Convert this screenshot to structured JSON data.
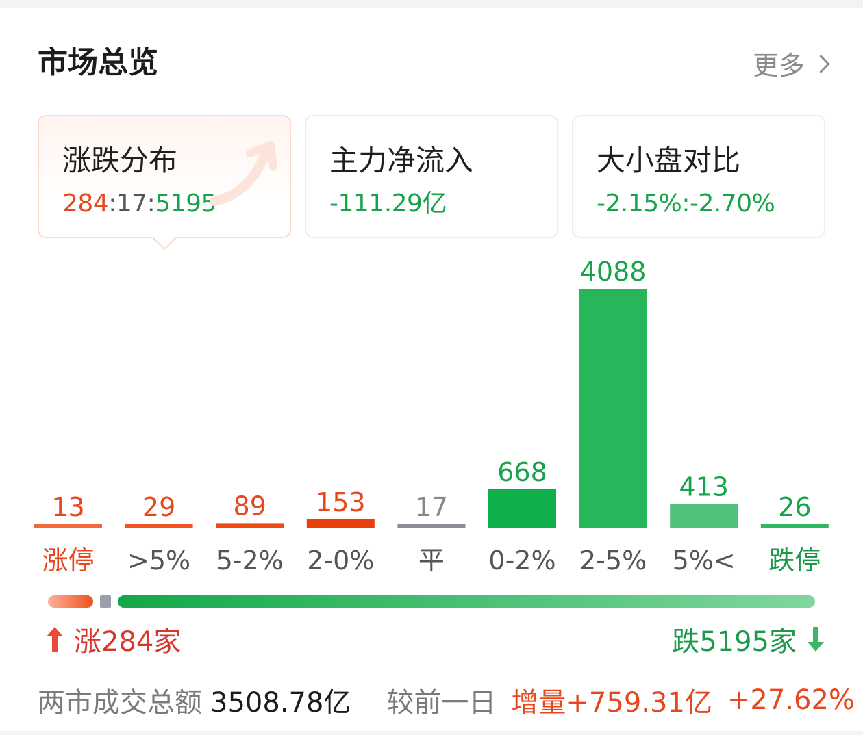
{
  "header": {
    "title": "市场总览",
    "more_label": "更多"
  },
  "tabs": [
    {
      "label": "涨跌分布",
      "value_up": "284",
      "value_sep1": ":",
      "value_flat": "17",
      "value_sep2": ":",
      "value_down": "5195",
      "active": true
    },
    {
      "label": "主力净流入",
      "value": "-111.29亿"
    },
    {
      "label": "大小盘对比",
      "value": "-2.15%:-2.70%"
    }
  ],
  "chart_data": {
    "type": "bar",
    "categories": [
      "涨停",
      ">5%",
      "5-2%",
      "2-0%",
      "平",
      "0-2%",
      "2-5%",
      "5%<",
      "跌停"
    ],
    "values": [
      13,
      29,
      89,
      153,
      17,
      668,
      4088,
      413,
      26
    ],
    "value_labels": [
      "13",
      "29",
      "89",
      "153",
      "17",
      "668",
      "4088",
      "413",
      "26"
    ],
    "colors": [
      "#f26a3c",
      "#f25522",
      "#ee4a12",
      "#e8400a",
      "#8c8c96",
      "#0faf4c",
      "#27b75a",
      "#4ec27a",
      "#2fb860"
    ],
    "label_colors": [
      "#e8461c",
      "#e8461c",
      "#e8461c",
      "#e8461c",
      "#888888",
      "#17a34a",
      "#17a34a",
      "#17a34a",
      "#17a34a"
    ],
    "category_colors": [
      "#e8461c",
      "#555555",
      "#555555",
      "#555555",
      "#555555",
      "#555555",
      "#555555",
      "#555555",
      "#1a9a4a"
    ],
    "ylim": [
      0,
      4088
    ]
  },
  "ratio_bar": {
    "up": 284,
    "flat": 17,
    "down": 5195
  },
  "summary": {
    "up_text": "涨284家",
    "down_text": "跌5195家"
  },
  "footer": {
    "label": "两市成交总额",
    "total": "3508.78亿",
    "compare_label": "较前一日",
    "change": "增量+759.31亿",
    "change_pct": "+27.62%"
  }
}
